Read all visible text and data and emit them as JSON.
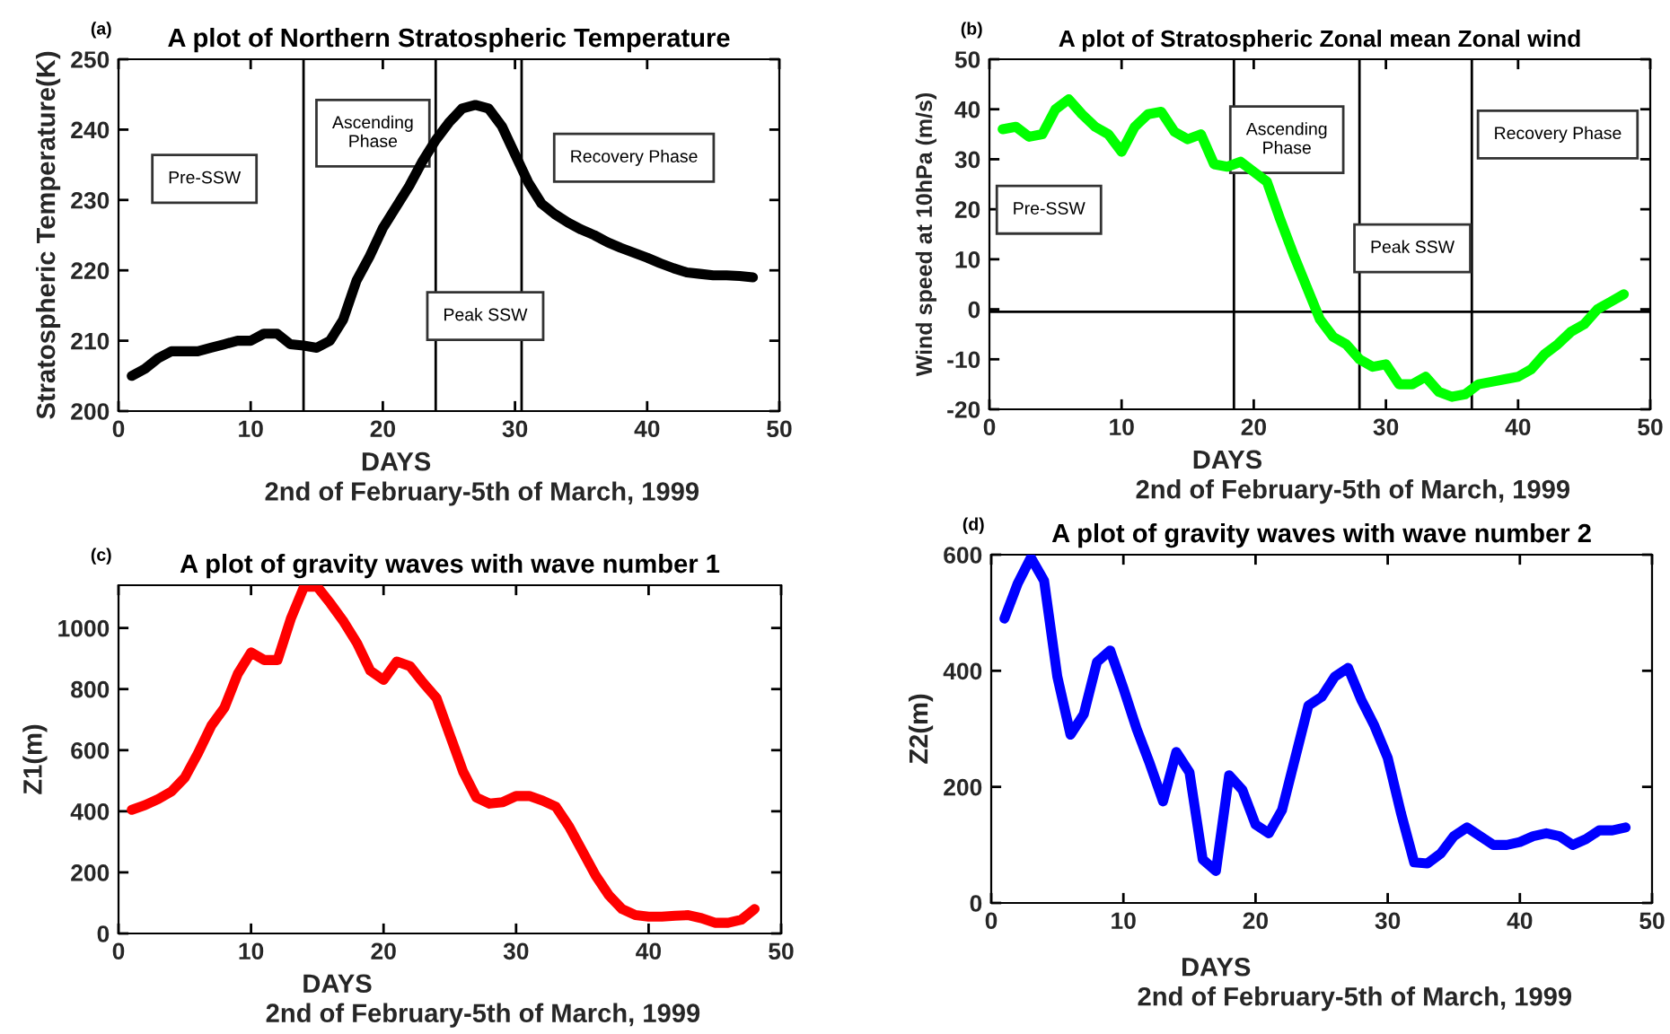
{
  "chart_data": [
    {
      "type": "line",
      "title": "A plot of Northern Stratospheric Temperature",
      "xlabel": "DAYS",
      "ylabel": "Stratospheric Temperature(K)",
      "x": [
        1,
        2,
        3,
        4,
        5,
        6,
        7,
        8,
        9,
        10,
        11,
        12,
        13,
        14,
        15,
        16,
        17,
        18,
        19,
        20,
        21,
        22,
        23,
        24,
        25,
        26,
        27,
        28,
        29,
        30,
        31,
        32,
        33,
        34,
        35,
        36,
        37,
        38,
        39,
        40,
        41,
        42,
        43,
        44,
        45,
        46,
        47,
        48
      ],
      "series": [
        {
          "color": "#000000",
          "values": [
            205,
            206,
            207.5,
            208.5,
            208.5,
            208.5,
            209,
            209.5,
            210,
            210,
            211,
            211,
            209.5,
            209.3,
            209,
            210,
            213,
            218.5,
            222,
            226,
            229,
            232,
            235.5,
            238.5,
            241,
            243,
            243.5,
            243,
            240.5,
            236.5,
            232.5,
            229.5,
            228,
            226.8,
            225.8,
            225,
            224,
            223.2,
            222.5,
            221.8,
            221,
            220.3,
            219.7,
            219.5,
            219.3,
            219.3,
            219.2,
            219
          ]
        }
      ],
      "xlim": [
        0,
        50
      ],
      "xticks": [
        0,
        10,
        20,
        30,
        40,
        50
      ],
      "ylim": [
        200,
        250
      ],
      "yticks": [
        200,
        210,
        220,
        230,
        240,
        250
      ],
      "ref_lines": [
        {
          "axis": "x",
          "value": 14,
          "color": "#000000"
        },
        {
          "axis": "x",
          "value": 24,
          "color": "#000000"
        },
        {
          "axis": "x",
          "value": 30.5,
          "color": "#000000"
        }
      ],
      "annotations": [
        "(a)",
        "2nd of February-5th of March, 1999",
        "Pre-SSW",
        "Ascending\nPhase",
        "Peak SSW",
        "Recovery Phase"
      ],
      "grid": false,
      "line_style": "solid",
      "marker": "none"
    },
    {
      "type": "line",
      "title": "A plot of Stratospheric Zonal mean Zonal wind",
      "xlabel": "DAYS",
      "ylabel": "Wind speed at 10hPa (m/s)",
      "x": [
        1,
        2,
        3,
        4,
        5,
        6,
        7,
        8,
        9,
        10,
        11,
        12,
        13,
        14,
        15,
        16,
        17,
        18,
        19,
        20,
        21,
        22,
        23,
        24,
        25,
        26,
        27,
        28,
        29,
        30,
        31,
        32,
        33,
        34,
        35,
        36,
        37,
        38,
        39,
        40,
        41,
        42,
        43,
        44,
        45,
        46,
        47,
        48
      ],
      "series": [
        {
          "color": "#00ff00",
          "values": [
            36,
            36.5,
            34.5,
            35,
            40,
            42,
            39,
            36.5,
            35,
            31.5,
            36.5,
            39,
            39.5,
            35.5,
            34,
            35,
            29,
            28.5,
            29.5,
            27.5,
            25.5,
            18,
            11,
            4.5,
            -2,
            -5.5,
            -7,
            -10,
            -11.5,
            -11,
            -15,
            -15,
            -13.5,
            -16.5,
            -17.5,
            -17,
            -15,
            -14.5,
            -14,
            -13.5,
            -12,
            -9,
            -7,
            -4.5,
            -3,
            0,
            1.5,
            3
          ]
        }
      ],
      "xlim": [
        0,
        50
      ],
      "xticks": [
        0,
        10,
        20,
        30,
        40,
        50
      ],
      "ylim": [
        -20,
        50
      ],
      "yticks": [
        -20,
        -10,
        0,
        10,
        20,
        30,
        40,
        50
      ],
      "ref_lines": [
        {
          "axis": "x",
          "value": 18.5,
          "color": "#000000"
        },
        {
          "axis": "x",
          "value": 28,
          "color": "#000000"
        },
        {
          "axis": "x",
          "value": 36.5,
          "color": "#000000"
        },
        {
          "axis": "y",
          "value": -0.5,
          "color": "#000000"
        }
      ],
      "annotations": [
        "(b)",
        "2nd of February-5th of March, 1999",
        "Pre-SSW",
        "Ascending\nPhase",
        "Peak SSW",
        "Recovery Phase"
      ],
      "grid": false,
      "line_style": "solid",
      "marker": "none"
    },
    {
      "type": "line",
      "title": "A plot of gravity waves with wave number 1",
      "xlabel": "DAYS",
      "ylabel": "Z1(m)",
      "x": [
        1,
        2,
        3,
        4,
        5,
        6,
        7,
        8,
        9,
        10,
        11,
        12,
        13,
        14,
        15,
        16,
        17,
        18,
        19,
        20,
        21,
        22,
        23,
        24,
        25,
        26,
        27,
        28,
        29,
        30,
        31,
        32,
        33,
        34,
        35,
        36,
        37,
        38,
        39,
        40,
        41,
        42,
        43,
        44,
        45,
        46,
        47,
        48
      ],
      "series": [
        {
          "color": "#ff0000",
          "values": [
            405,
            420,
            440,
            465,
            510,
            590,
            680,
            740,
            850,
            920,
            895,
            895,
            1030,
            1135,
            1135,
            1080,
            1020,
            950,
            860,
            830,
            890,
            875,
            820,
            770,
            650,
            530,
            445,
            425,
            430,
            450,
            450,
            435,
            415,
            350,
            270,
            190,
            125,
            80,
            60,
            55,
            55,
            58,
            60,
            50,
            35,
            35,
            45,
            80
          ]
        }
      ],
      "xlim": [
        0,
        50
      ],
      "xticks": [
        0,
        10,
        20,
        30,
        40,
        50
      ],
      "ylim": [
        0,
        1140
      ],
      "yticks": [
        0,
        200,
        400,
        600,
        800,
        1000
      ],
      "annotations": [
        "(c)",
        "2nd of February-5th of March, 1999"
      ],
      "grid": false,
      "line_style": "solid",
      "marker": "none"
    },
    {
      "type": "line",
      "title": "A plot of gravity waves with wave number 2",
      "xlabel": "DAYS",
      "ylabel": "Z2(m)",
      "x": [
        1,
        2,
        3,
        4,
        5,
        6,
        7,
        8,
        9,
        10,
        11,
        12,
        13,
        14,
        15,
        16,
        17,
        18,
        19,
        20,
        21,
        22,
        23,
        24,
        25,
        26,
        27,
        28,
        29,
        30,
        31,
        32,
        33,
        34,
        35,
        36,
        37,
        38,
        39,
        40,
        41,
        42,
        43,
        44,
        45,
        46,
        47,
        48
      ],
      "series": [
        {
          "color": "#0000ff",
          "values": [
            490,
            550,
            595,
            555,
            390,
            290,
            325,
            415,
            435,
            370,
            300,
            240,
            175,
            260,
            225,
            75,
            55,
            220,
            195,
            135,
            120,
            160,
            250,
            340,
            355,
            390,
            405,
            350,
            305,
            250,
            155,
            70,
            68,
            85,
            115,
            130,
            115,
            100,
            100,
            105,
            115,
            120,
            115,
            100,
            110,
            125,
            125,
            130
          ]
        }
      ],
      "xlim": [
        0,
        50
      ],
      "xticks": [
        0,
        10,
        20,
        30,
        40,
        50
      ],
      "ylim": [
        0,
        600
      ],
      "yticks": [
        0,
        200,
        400,
        600
      ],
      "annotations": [
        "(d)",
        "2nd of February-5th of March, 1999"
      ],
      "grid": false,
      "line_style": "solid",
      "marker": "none"
    }
  ]
}
